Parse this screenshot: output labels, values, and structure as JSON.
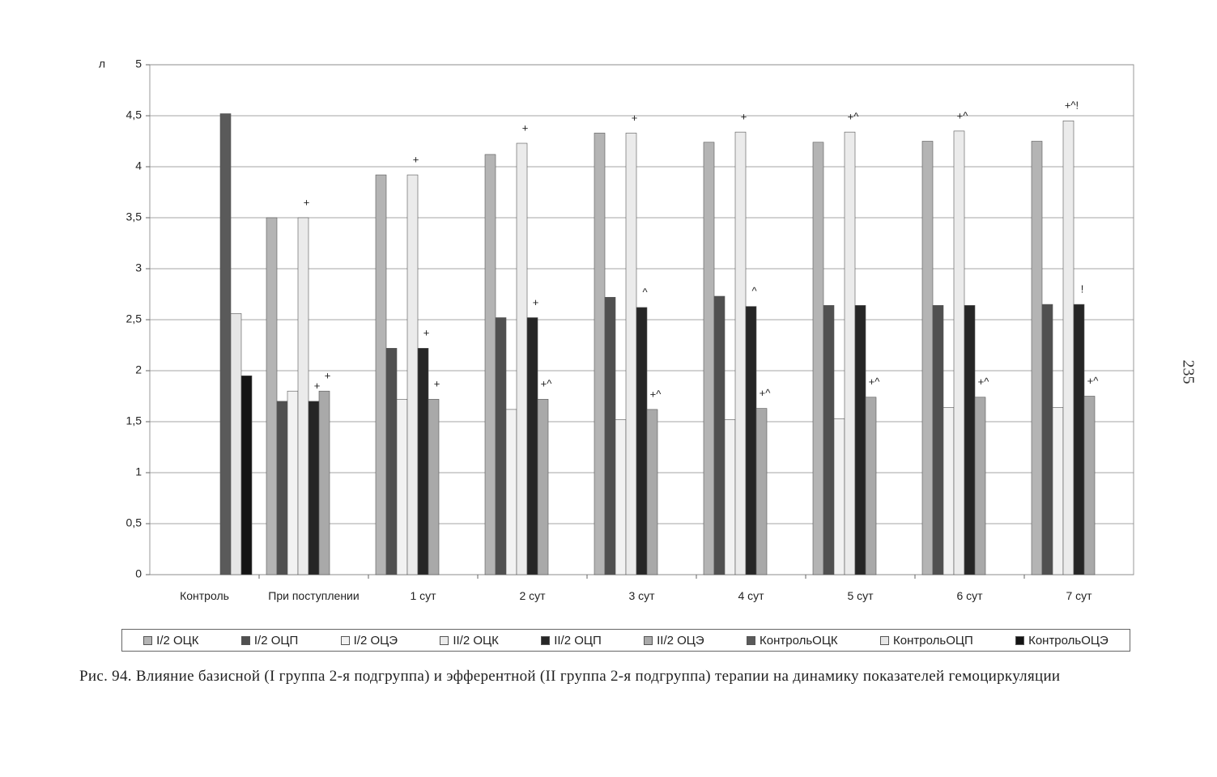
{
  "chart_data": {
    "type": "bar",
    "y_label": "л",
    "categories": [
      "Контроль",
      "При поступлении",
      "1 сут",
      "2 сут",
      "3 сут",
      "4 сут",
      "5 сут",
      "6 сут",
      "7 сут"
    ],
    "ylim": [
      0,
      5
    ],
    "yticks": [
      0,
      {
        "value": 0.5,
        "label": "0,5"
      },
      1,
      {
        "value": 1.5,
        "label": "1,5"
      },
      2,
      {
        "value": 2.5,
        "label": "2,5"
      },
      3,
      {
        "value": 3.5,
        "label": "3,5"
      },
      4,
      {
        "value": 4.5,
        "label": "4,5"
      },
      5
    ],
    "grid": true,
    "series": [
      {
        "name": "I/2 ОЦК",
        "color": "#b4b4b4",
        "values": [
          null,
          3.5,
          3.92,
          4.12,
          4.33,
          4.24,
          4.24,
          4.25,
          4.25
        ]
      },
      {
        "name": "I/2 ОЦП",
        "color": "#505050",
        "values": [
          null,
          1.7,
          2.22,
          2.52,
          2.72,
          2.73,
          2.64,
          2.64,
          2.65
        ]
      },
      {
        "name": "I/2 ОЦЭ",
        "color": "#f2f2f2",
        "values": [
          null,
          1.8,
          1.72,
          1.62,
          1.52,
          1.52,
          1.53,
          1.64,
          1.64
        ]
      },
      {
        "name": "II/2 ОЦК",
        "color": "#ebebeb",
        "values": [
          null,
          3.5,
          3.92,
          4.23,
          4.33,
          4.34,
          4.34,
          4.35,
          4.45
        ],
        "annotations": [
          null,
          "+",
          "+",
          "+",
          "+",
          "+",
          "+^",
          "+^",
          "+^!"
        ]
      },
      {
        "name": "II/2 ОЦП",
        "color": "#262626",
        "values": [
          null,
          1.7,
          2.22,
          2.52,
          2.62,
          2.63,
          2.64,
          2.64,
          2.65
        ],
        "annotations": [
          null,
          "+",
          "+",
          "+",
          "^",
          "^",
          null,
          null,
          "!"
        ]
      },
      {
        "name": "II/2 ОЦЭ",
        "color": "#a9a9a9",
        "values": [
          null,
          1.8,
          1.72,
          1.72,
          1.62,
          1.63,
          1.74,
          1.74,
          1.75
        ],
        "annotations": [
          null,
          "+",
          "+",
          "+^",
          "+^",
          "+^",
          "+^",
          "+^",
          "+^"
        ]
      },
      {
        "name": "КонтрольОЦК",
        "color": "#5a5a5a",
        "values": [
          4.52,
          null,
          null,
          null,
          null,
          null,
          null,
          null,
          null
        ]
      },
      {
        "name": "КонтрольОЦП",
        "color": "#e6e6e6",
        "values": [
          2.56,
          null,
          null,
          null,
          null,
          null,
          null,
          null,
          null
        ]
      },
      {
        "name": "КонтрольОЦЭ",
        "color": "#141414",
        "values": [
          1.95,
          null,
          null,
          null,
          null,
          null,
          null,
          null,
          null
        ]
      }
    ]
  },
  "caption": "Рис. 94. Влияние базисной (I группа 2-я подгруппа) и эфферентной (II группа 2-я подгруппа) терапии на динамику показателей гемоциркуляции",
  "page_number": "235"
}
